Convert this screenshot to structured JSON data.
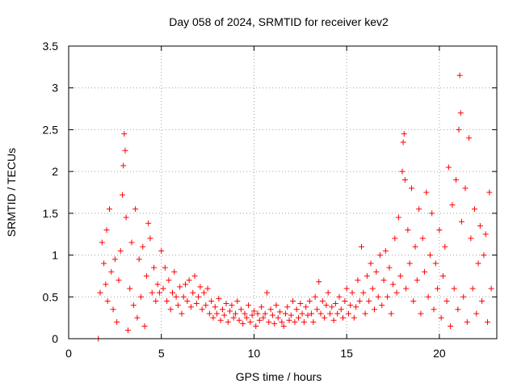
{
  "chart_data": {
    "type": "scatter",
    "title": "Day 058 of 2024, SRMTID for receiver kev2",
    "xlabel": "GPS time / hours",
    "ylabel": "SRMTID / TECUs",
    "xlim": [
      0,
      23.1
    ],
    "ylim": [
      0,
      3.5
    ],
    "grid": true,
    "marker": "+",
    "color": "#ff0000",
    "xticks": [
      0,
      5,
      10,
      15,
      20
    ],
    "xtick_labels": [
      "0",
      "5",
      "10",
      "15",
      "20"
    ],
    "yticks": [
      0,
      0.5,
      1,
      1.5,
      2,
      2.5,
      3,
      3.5
    ],
    "ytick_labels": [
      "0",
      "0.5",
      "1",
      "1.5",
      "2",
      "2.5",
      "3",
      "3.5"
    ],
    "series": [
      {
        "name": "kev2",
        "points": [
          [
            1.6,
            0.0
          ],
          [
            1.7,
            0.55
          ],
          [
            1.8,
            1.15
          ],
          [
            1.9,
            0.9
          ],
          [
            2.0,
            0.65
          ],
          [
            2.05,
            1.3
          ],
          [
            2.1,
            0.45
          ],
          [
            2.2,
            1.55
          ],
          [
            2.3,
            0.8
          ],
          [
            2.4,
            0.35
          ],
          [
            2.5,
            0.95
          ],
          [
            2.6,
            0.2
          ],
          [
            2.7,
            0.7
          ],
          [
            2.8,
            1.05
          ],
          [
            2.9,
            1.72
          ],
          [
            2.95,
            2.07
          ],
          [
            3.0,
            2.45
          ],
          [
            3.05,
            2.25
          ],
          [
            3.1,
            1.45
          ],
          [
            3.2,
            0.1
          ],
          [
            3.3,
            0.6
          ],
          [
            3.4,
            1.15
          ],
          [
            3.5,
            0.4
          ],
          [
            3.6,
            1.55
          ],
          [
            3.7,
            0.25
          ],
          [
            3.8,
            0.95
          ],
          [
            3.9,
            0.5
          ],
          [
            4.0,
            1.1
          ],
          [
            4.1,
            0.15
          ],
          [
            4.2,
            0.75
          ],
          [
            4.3,
            1.38
          ],
          [
            4.4,
            1.2
          ],
          [
            4.5,
            0.55
          ],
          [
            4.6,
            0.85
          ],
          [
            4.7,
            0.45
          ],
          [
            4.8,
            0.65
          ],
          [
            4.9,
            0.55
          ],
          [
            5.0,
            1.05
          ],
          [
            5.1,
            0.6
          ],
          [
            5.2,
            0.85
          ],
          [
            5.3,
            0.45
          ],
          [
            5.4,
            0.7
          ],
          [
            5.5,
            0.35
          ],
          [
            5.6,
            0.55
          ],
          [
            5.7,
            0.8
          ],
          [
            5.8,
            0.5
          ],
          [
            5.9,
            0.4
          ],
          [
            6.0,
            0.62
          ],
          [
            6.1,
            0.3
          ],
          [
            6.2,
            0.5
          ],
          [
            6.3,
            0.65
          ],
          [
            6.4,
            0.45
          ],
          [
            6.5,
            0.7
          ],
          [
            6.6,
            0.38
          ],
          [
            6.7,
            0.55
          ],
          [
            6.8,
            0.75
          ],
          [
            6.9,
            0.42
          ],
          [
            7.0,
            0.5
          ],
          [
            7.1,
            0.62
          ],
          [
            7.2,
            0.35
          ],
          [
            7.3,
            0.55
          ],
          [
            7.4,
            0.4
          ],
          [
            7.5,
            0.6
          ],
          [
            7.6,
            0.3
          ],
          [
            7.7,
            0.45
          ],
          [
            7.8,
            0.25
          ],
          [
            7.9,
            0.38
          ],
          [
            8.0,
            0.3
          ],
          [
            8.1,
            0.48
          ],
          [
            8.2,
            0.22
          ],
          [
            8.3,
            0.35
          ],
          [
            8.4,
            0.28
          ],
          [
            8.5,
            0.42
          ],
          [
            8.6,
            0.2
          ],
          [
            8.7,
            0.33
          ],
          [
            8.8,
            0.4
          ],
          [
            8.9,
            0.25
          ],
          [
            9.0,
            0.3
          ],
          [
            9.1,
            0.45
          ],
          [
            9.2,
            0.22
          ],
          [
            9.3,
            0.35
          ],
          [
            9.4,
            0.18
          ],
          [
            9.5,
            0.3
          ],
          [
            9.6,
            0.25
          ],
          [
            9.7,
            0.4
          ],
          [
            9.8,
            0.2
          ],
          [
            9.9,
            0.28
          ],
          [
            10.0,
            0.33
          ],
          [
            10.1,
            0.15
          ],
          [
            10.2,
            0.3
          ],
          [
            10.3,
            0.22
          ],
          [
            10.4,
            0.38
          ],
          [
            10.5,
            0.25
          ],
          [
            10.6,
            0.3
          ],
          [
            10.7,
            0.55
          ],
          [
            10.8,
            0.2
          ],
          [
            10.9,
            0.35
          ],
          [
            11.0,
            0.28
          ],
          [
            11.1,
            0.18
          ],
          [
            11.2,
            0.4
          ],
          [
            11.3,
            0.25
          ],
          [
            11.4,
            0.32
          ],
          [
            11.5,
            0.2
          ],
          [
            11.6,
            0.15
          ],
          [
            11.7,
            0.3
          ],
          [
            11.8,
            0.38
          ],
          [
            11.9,
            0.22
          ],
          [
            12.0,
            0.28
          ],
          [
            12.1,
            0.45
          ],
          [
            12.2,
            0.2
          ],
          [
            12.3,
            0.35
          ],
          [
            12.4,
            0.25
          ],
          [
            12.5,
            0.42
          ],
          [
            12.6,
            0.3
          ],
          [
            12.7,
            0.2
          ],
          [
            12.8,
            0.38
          ],
          [
            12.9,
            0.28
          ],
          [
            13.0,
            0.45
          ],
          [
            13.1,
            0.3
          ],
          [
            13.2,
            0.2
          ],
          [
            13.3,
            0.5
          ],
          [
            13.4,
            0.35
          ],
          [
            13.5,
            0.68
          ],
          [
            13.6,
            0.3
          ],
          [
            13.7,
            0.45
          ],
          [
            13.8,
            0.25
          ],
          [
            13.9,
            0.4
          ],
          [
            14.0,
            0.55
          ],
          [
            14.1,
            0.3
          ],
          [
            14.2,
            0.38
          ],
          [
            14.3,
            0.22
          ],
          [
            14.4,
            0.42
          ],
          [
            14.5,
            0.3
          ],
          [
            14.6,
            0.5
          ],
          [
            14.7,
            0.35
          ],
          [
            14.8,
            0.25
          ],
          [
            14.9,
            0.45
          ],
          [
            15.0,
            0.6
          ],
          [
            15.1,
            0.3
          ],
          [
            15.2,
            0.4
          ],
          [
            15.3,
            0.55
          ],
          [
            15.4,
            0.25
          ],
          [
            15.5,
            0.38
          ],
          [
            15.6,
            0.7
          ],
          [
            15.7,
            0.45
          ],
          [
            15.8,
            1.1
          ],
          [
            15.9,
            0.55
          ],
          [
            16.0,
            0.3
          ],
          [
            16.1,
            0.75
          ],
          [
            16.2,
            0.45
          ],
          [
            16.3,
            0.9
          ],
          [
            16.4,
            0.6
          ],
          [
            16.5,
            0.35
          ],
          [
            16.6,
            0.8
          ],
          [
            16.7,
            0.5
          ],
          [
            16.8,
            1.0
          ],
          [
            16.9,
            0.4
          ],
          [
            17.0,
            0.7
          ],
          [
            17.1,
            1.05
          ],
          [
            17.2,
            0.5
          ],
          [
            17.3,
            0.85
          ],
          [
            17.4,
            0.3
          ],
          [
            17.5,
            0.65
          ],
          [
            17.6,
            1.2
          ],
          [
            17.7,
            0.55
          ],
          [
            17.8,
            1.45
          ],
          [
            17.9,
            0.75
          ],
          [
            18.0,
            2.0
          ],
          [
            18.05,
            2.35
          ],
          [
            18.1,
            2.45
          ],
          [
            18.15,
            1.9
          ],
          [
            18.2,
            0.6
          ],
          [
            18.3,
            1.3
          ],
          [
            18.4,
            0.9
          ],
          [
            18.5,
            1.8
          ],
          [
            18.6,
            0.45
          ],
          [
            18.7,
            1.1
          ],
          [
            18.8,
            0.7
          ],
          [
            18.9,
            1.55
          ],
          [
            19.0,
            0.3
          ],
          [
            19.1,
            1.2
          ],
          [
            19.2,
            0.8
          ],
          [
            19.3,
            1.75
          ],
          [
            19.4,
            0.5
          ],
          [
            19.5,
            1.0
          ],
          [
            19.6,
            1.5
          ],
          [
            19.7,
            0.35
          ],
          [
            19.8,
            0.9
          ],
          [
            19.9,
            0.6
          ],
          [
            20.0,
            1.3
          ],
          [
            20.1,
            0.25
          ],
          [
            20.2,
            0.75
          ],
          [
            20.3,
            1.1
          ],
          [
            20.4,
            0.45
          ],
          [
            20.5,
            2.05
          ],
          [
            20.6,
            0.15
          ],
          [
            20.7,
            1.6
          ],
          [
            20.8,
            0.6
          ],
          [
            20.9,
            1.9
          ],
          [
            21.0,
            0.35
          ],
          [
            21.05,
            2.5
          ],
          [
            21.1,
            3.15
          ],
          [
            21.15,
            2.7
          ],
          [
            21.2,
            1.4
          ],
          [
            21.3,
            0.5
          ],
          [
            21.4,
            1.8
          ],
          [
            21.5,
            0.2
          ],
          [
            21.6,
            2.4
          ],
          [
            21.7,
            1.2
          ],
          [
            21.8,
            0.6
          ],
          [
            21.9,
            1.55
          ],
          [
            22.0,
            0.3
          ],
          [
            22.1,
            0.9
          ],
          [
            22.2,
            1.35
          ],
          [
            22.3,
            0.45
          ],
          [
            22.4,
            1.0
          ],
          [
            22.5,
            1.25
          ],
          [
            22.6,
            0.2
          ],
          [
            22.7,
            1.75
          ],
          [
            22.8,
            0.6
          ]
        ]
      }
    ]
  }
}
